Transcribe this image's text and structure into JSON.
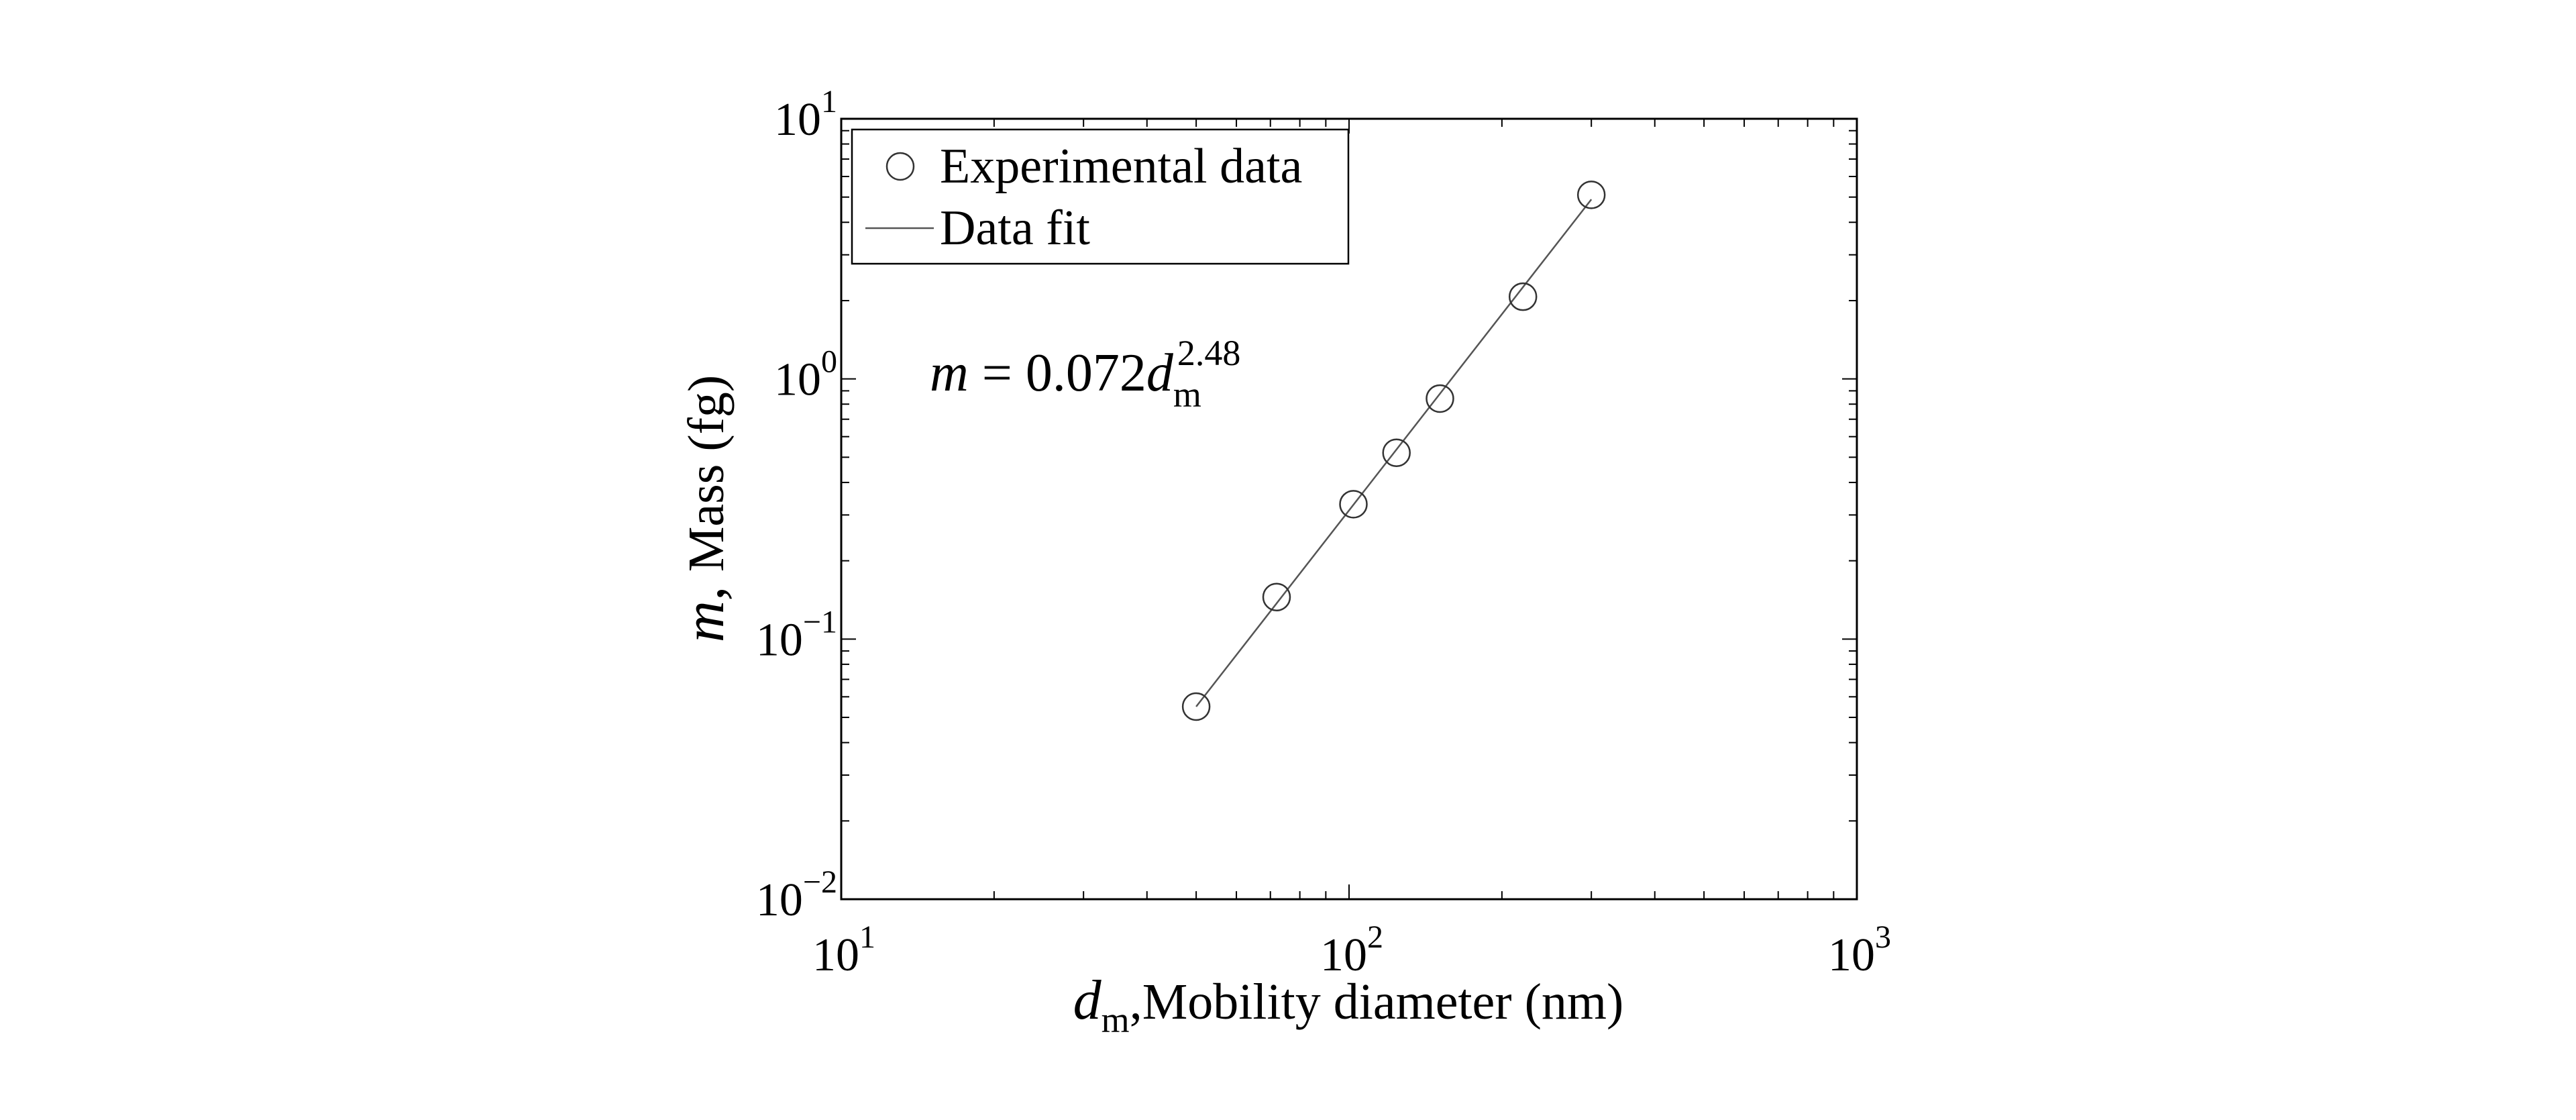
{
  "chart_data": {
    "type": "scatter",
    "x_scale": "log",
    "y_scale": "log",
    "xlim": [
      10,
      1000
    ],
    "ylim": [
      0.01,
      10
    ],
    "x_ticks": [
      {
        "value": 10,
        "base": "10",
        "exp": "1"
      },
      {
        "value": 100,
        "base": "10",
        "exp": "2"
      },
      {
        "value": 1000,
        "base": "10",
        "exp": "3"
      }
    ],
    "y_ticks": [
      {
        "value": 0.01,
        "base": "10",
        "exp": "−2"
      },
      {
        "value": 0.1,
        "base": "10",
        "exp": "−1"
      },
      {
        "value": 1,
        "base": "10",
        "exp": "0"
      },
      {
        "value": 10,
        "base": "10",
        "exp": "1"
      }
    ],
    "xlabel": {
      "symbol": "d",
      "subscript": "m",
      "text": ",Mobility diameter (nm)"
    },
    "ylabel": {
      "symbol": "m,",
      "text": "Mass (fg)"
    },
    "series": [
      {
        "name": "Experimental data",
        "kind": "markers",
        "marker": "open-circle",
        "x": [
          50,
          72,
          102,
          124,
          151,
          220,
          300
        ],
        "y": [
          0.055,
          0.145,
          0.33,
          0.52,
          0.84,
          2.07,
          5.1
        ]
      },
      {
        "name": "Data fit",
        "kind": "line",
        "x": [
          50,
          300
        ],
        "y": [
          0.055,
          4.9
        ]
      }
    ],
    "annotation": {
      "lhs": "m",
      "eq": " = 0.072",
      "symbol": "d",
      "subscript": "m",
      "superscript": "2.48"
    },
    "legend_position": "top-left",
    "grid": false,
    "colors": {
      "axes": "#000000",
      "marker": "#333333",
      "line": "#555555",
      "background": "#ffffff"
    }
  }
}
